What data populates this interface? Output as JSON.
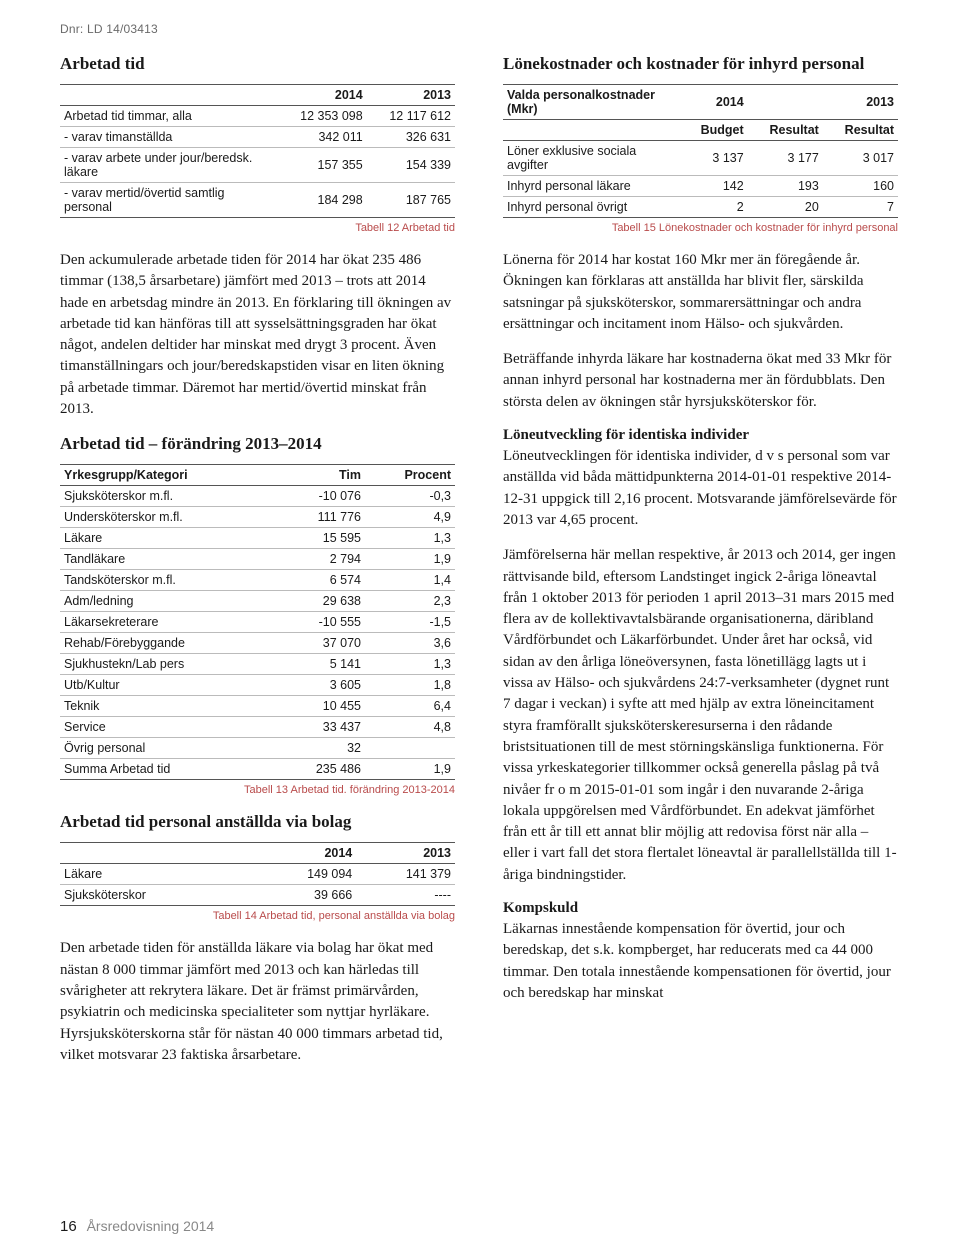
{
  "dnr": "Dnr: LD 14/03413",
  "left": {
    "h1": "Arbetad tid",
    "table1": {
      "cols": [
        "",
        "2014",
        "2013"
      ],
      "rows": [
        [
          "Arbetad tid timmar, alla",
          "12 353 098",
          "12 117 612"
        ],
        [
          "- varav timanställda",
          "342 011",
          "326 631"
        ],
        [
          "- varav arbete under jour/beredsk. läkare",
          "157 355",
          "154 339"
        ],
        [
          "- varav mertid/övertid samtlig personal",
          "184 298",
          "187 765"
        ]
      ],
      "caption": "Tabell 12 Arbetad tid"
    },
    "p1": "Den ackumulerade arbetade tiden för 2014 har ökat 235 486 timmar (138,5 årsarbetare) jämfört med 2013 – trots att 2014 hade en arbetsdag mindre än 2013. En förklaring till ökningen av arbetade tid kan hänföras till att sysselsättningsgraden har ökat något, andelen deltider har minskat med drygt 3 procent. Även timanställningars och jour/beredskapstiden visar en liten ökning på arbetade timmar. Däremot har mertid/övertid minskat från 2013.",
    "h2": "Arbetad tid – förändring 2013–2014",
    "table2": {
      "cols": [
        "Yrkesgrupp/Kategori",
        "Tim",
        "Procent"
      ],
      "rows": [
        [
          "Sjuksköterskor m.fl.",
          "-10 076",
          "-0,3"
        ],
        [
          "Undersköterskor m.fl.",
          "111 776",
          "4,9"
        ],
        [
          "Läkare",
          "15 595",
          "1,3"
        ],
        [
          "Tandläkare",
          "2 794",
          "1,9"
        ],
        [
          "Tandsköterskor m.fl.",
          "6 574",
          "1,4"
        ],
        [
          "Adm/ledning",
          "29 638",
          "2,3"
        ],
        [
          "Läkarsekreterare",
          "-10 555",
          "-1,5"
        ],
        [
          "Rehab/Förebyggande",
          "37 070",
          "3,6"
        ],
        [
          "Sjukhustekn/Lab pers",
          "5 141",
          "1,3"
        ],
        [
          "Utb/Kultur",
          "3 605",
          "1,8"
        ],
        [
          "Teknik",
          "10 455",
          "6,4"
        ],
        [
          "Service",
          "33 437",
          "4,8"
        ],
        [
          "Övrig personal",
          "32",
          ""
        ]
      ],
      "total": [
        "Summa Arbetad tid",
        "235 486",
        "1,9"
      ],
      "caption": "Tabell 13 Arbetad tid. förändring 2013-2014"
    },
    "h3": "Arbetad tid personal anställda via bolag",
    "table3": {
      "cols": [
        "",
        "2014",
        "2013"
      ],
      "rows": [
        [
          "Läkare",
          "149 094",
          "141 379"
        ],
        [
          "Sjuksköterskor",
          "39 666",
          "----"
        ]
      ],
      "caption": "Tabell 14 Arbetad tid, personal anställda via bolag"
    },
    "p2": "Den arbetade tiden för anställda läkare via bolag har ökat med nästan 8 000 timmar jämfört med 2013 och kan härledas till svårigheter att rekrytera läkare. Det är främst primärvården, psykiatrin och medicinska specialiteter som nyttjar hyrläkare. Hyrsjuksköterskorna står för nästan 40 000 timmars arbetad tid, vilket motsvarar 23 faktiska årsarbetare."
  },
  "right": {
    "h1": "Lönekostnader och kostnader för inhyrd personal",
    "table4": {
      "head1": [
        "Valda personalkostnader (Mkr)",
        "2014",
        "",
        "2013"
      ],
      "head2": [
        "",
        "Budget",
        "Resultat",
        "Resultat"
      ],
      "rows": [
        [
          "Löner exklusive sociala avgifter",
          "3 137",
          "3 177",
          "3 017"
        ],
        [
          "Inhyrd personal läkare",
          "142",
          "193",
          "160"
        ],
        [
          "Inhyrd personal övrigt",
          "2",
          "20",
          "7"
        ]
      ],
      "caption": "Tabell 15 Lönekostnader och kostnader för inhyrd personal"
    },
    "p1": "Lönerna för 2014 har kostat 160 Mkr mer än föregående år. Ökningen kan förklaras att anställda har blivit fler, särskilda satsningar på sjuksköterskor, sommarersättningar och andra ersättningar och incitament inom Hälso- och sjukvården.",
    "p2": "Beträffande inhyrda läkare har kostnaderna ökat med 33 Mkr för annan inhyrd personal har kostnaderna mer än fördubblats. Den största delen av ökningen står hyrsjuksköterskor för.",
    "h2": "Löneutveckling för identiska individer",
    "p3": "Löneutvecklingen för identiska individer, d v s personal som var anställda vid båda mättidpunkterna 2014-01-01 respektive 2014-12-31 uppgick till 2,16 procent. Motsvarande jämförelsevärde för 2013 var 4,65 procent.",
    "p4": "Jämförelserna här mellan respektive, år 2013 och 2014, ger ingen rättvisande bild, eftersom Landstinget ingick 2-åriga löneavtal från 1 oktober 2013 för perioden 1 april 2013–31 mars 2015 med flera av de kollektivavtalsbärande organisationerna, däribland Vårdförbundet och Läkarförbundet. Under året har också, vid sidan av den årliga löneöversynen, fasta lönetillägg lagts ut i vissa av Hälso- och sjukvårdens 24:7-verksamheter (dygnet runt 7 dagar i veckan) i syfte att med hjälp av extra löneincitament styra framförallt sjuksköterskeresurserna i den rådande bristsituationen till de mest störningskänsliga funktionerna. För vissa yrkeskategorier tillkommer också generella påslag på två nivåer fr o m 2015-01-01 som ingår i den nuvarande 2-åriga lokala uppgörelsen med Vårdförbundet. En adekvat jämförhet från ett år till ett annat blir möjlig att redovisa först när alla – eller i vart fall det stora flertalet löneavtal är parallellställda till 1-åriga bindningstider.",
    "h3": "Kompskuld",
    "p5": "Läkarnas innestående kompensation för övertid, jour och beredskap, det s.k. kompberget, har reducerats med ca 44 000 timmar. Den totala innestående kompensationen för övertid, jour och beredskap har minskat"
  },
  "footer": {
    "pagenum": "16",
    "text": "Årsredovisning 2014"
  }
}
